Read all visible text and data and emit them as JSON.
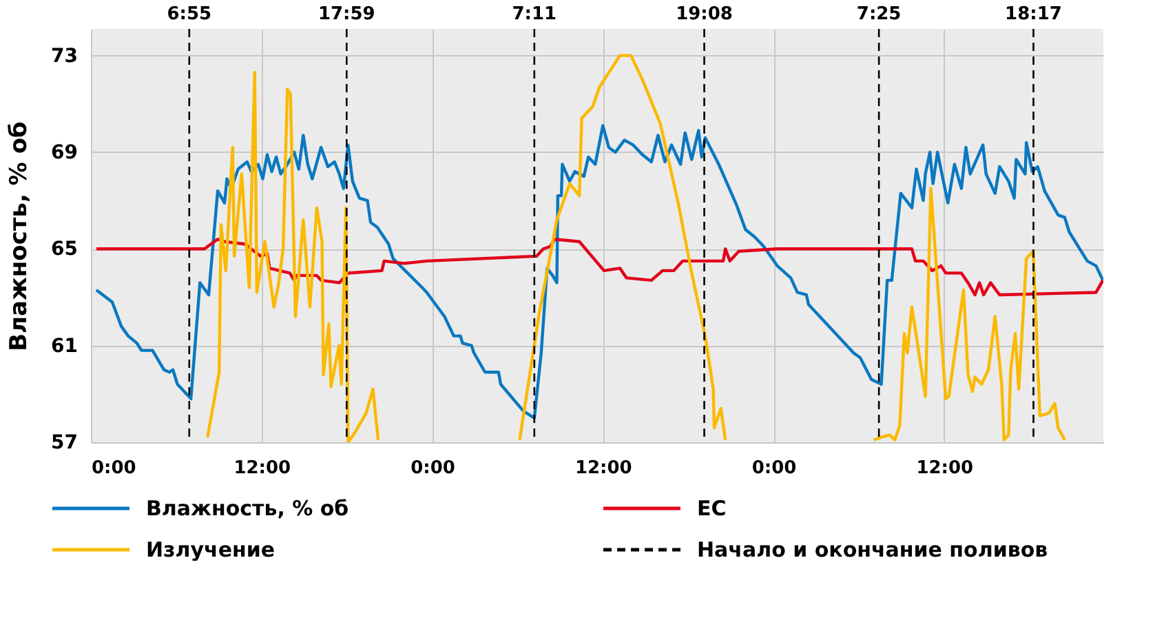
{
  "chart_data": {
    "type": "line",
    "ylabel": "Влажность, % об",
    "xlim": [
      "2000-01-01T00:00",
      "2000-01-03T23:12"
    ],
    "ylim": [
      57,
      74.1
    ],
    "xticks": [
      {
        "value": "2000-01-01T00:00",
        "label": "0:00"
      },
      {
        "value": "2000-01-01T12:00",
        "label": "12:00"
      },
      {
        "value": "2000-01-02T00:00",
        "label": "0:00"
      },
      {
        "value": "2000-01-02T12:00",
        "label": "12:00"
      },
      {
        "value": "2000-01-03T00:00",
        "label": "0:00"
      },
      {
        "value": "2000-01-03T12:00",
        "label": "12:00"
      }
    ],
    "yticks": [
      57,
      61,
      65,
      69,
      73
    ],
    "annotations": [
      "Начало и окончание поливов"
    ],
    "grid": true,
    "legend": "bottom",
    "line_style": "solid",
    "marker": "none",
    "series": [
      {
        "name": "Влажность, % об",
        "color": "#0a78c0",
        "x": [
          "2000-01-01T00:23",
          "2000-01-01T01:30",
          "2000-01-01T02:08",
          "2000-01-01T02:37",
          "2000-01-01T03:14",
          "2000-01-01T03:33",
          "2000-01-01T04:20",
          "2000-01-01T05:08",
          "2000-01-01T05:32",
          "2000-01-01T05:46",
          "2000-01-01T06:05",
          "2000-01-01T07:02",
          "2000-01-01T07:40",
          "2000-01-01T08:17",
          "2000-01-01T08:55",
          "2000-01-01T09:24",
          "2000-01-01T09:34",
          "2000-01-01T09:52",
          "2000-01-01T10:21",
          "2000-01-01T10:59",
          "2000-01-01T11:17",
          "2000-01-01T11:46",
          "2000-01-01T12:05",
          "2000-01-01T12:24",
          "2000-01-01T12:43",
          "2000-01-01T13:02",
          "2000-01-01T13:21",
          "2000-01-01T13:49",
          "2000-01-01T14:18",
          "2000-01-01T14:37",
          "2000-01-01T14:56",
          "2000-01-01T15:15",
          "2000-01-01T15:34",
          "2000-01-01T16:11",
          "2000-01-01T16:40",
          "2000-01-01T17:08",
          "2000-01-01T17:28",
          "2000-01-01T17:46",
          "2000-01-01T18:05",
          "2000-01-01T18:24",
          "2000-01-01T18:53",
          "2000-01-01T19:27",
          "2000-01-01T19:40",
          "2000-01-01T20:08",
          "2000-01-01T20:56",
          "2000-01-01T21:15",
          "2000-01-01T23:18",
          "2000-01-01T23:37",
          "2000-01-02T00:52",
          "2000-01-02T01:31",
          "2000-01-02T01:59",
          "2000-01-02T02:08",
          "2000-01-02T02:46",
          "2000-01-02T02:56",
          "2000-01-02T03:43",
          "2000-01-02T04:40",
          "2000-01-02T04:49",
          "2000-01-02T06:24",
          "2000-01-02T07:11",
          "2000-01-02T07:40",
          "2000-01-02T08:05",
          "2000-01-02T08:28",
          "2000-01-02T08:46",
          "2000-01-02T08:50",
          "2000-01-02T09:05",
          "2000-01-02T09:09",
          "2000-01-02T09:40",
          "2000-01-02T10:02",
          "2000-01-02T10:40",
          "2000-01-02T10:59",
          "2000-01-02T11:28",
          "2000-01-02T12:00",
          "2000-01-02T12:25",
          "2000-01-02T12:53",
          "2000-01-02T13:31",
          "2000-01-02T14:08",
          "2000-01-02T14:47",
          "2000-01-02T15:25",
          "2000-01-02T15:53",
          "2000-01-02T16:22",
          "2000-01-02T16:50",
          "2000-01-02T17:28",
          "2000-01-02T17:47",
          "2000-01-02T18:15",
          "2000-01-02T18:44",
          "2000-01-02T18:57",
          "2000-01-02T19:12",
          "2000-01-02T20:09",
          "2000-01-02T21:25",
          "2000-01-02T22:02",
          "2000-01-02T22:40",
          "2000-01-02T23:19",
          "2000-01-03T00:16",
          "2000-01-03T01:13",
          "2000-01-03T01:41",
          "2000-01-03T02:19",
          "2000-01-03T02:28",
          "2000-01-03T05:38",
          "2000-01-03T06:06",
          "2000-01-03T06:53",
          "2000-01-03T07:35",
          "2000-01-03T08:00",
          "2000-01-03T08:19",
          "2000-01-03T08:57",
          "2000-01-03T09:44",
          "2000-01-03T10:03",
          "2000-01-03T10:32",
          "2000-01-03T10:41",
          "2000-01-03T11:00",
          "2000-01-03T11:13",
          "2000-01-03T11:32",
          "2000-01-03T12:16",
          "2000-01-03T12:44",
          "2000-01-03T13:13",
          "2000-01-03T13:32",
          "2000-01-03T13:50",
          "2000-01-03T14:44",
          "2000-01-03T14:57",
          "2000-01-03T15:35",
          "2000-01-03T15:54",
          "2000-01-03T16:32",
          "2000-01-03T16:56",
          "2000-01-03T17:04",
          "2000-01-03T17:42",
          "2000-01-03T17:47",
          "2000-01-03T18:12",
          "2000-01-03T18:35",
          "2000-01-03T19:04",
          "2000-01-03T20:01",
          "2000-01-03T20:29",
          "2000-01-03T20:48",
          "2000-01-03T22:04",
          "2000-01-03T22:41",
          "2000-01-03T23:10"
        ],
        "values": [
          63.3,
          62.8,
          61.8,
          61.4,
          61.1,
          60.8,
          60.8,
          60.0,
          59.9,
          60.0,
          59.4,
          58.8,
          63.6,
          63.1,
          67.4,
          66.9,
          67.9,
          67.5,
          68.3,
          68.6,
          68.2,
          68.5,
          67.9,
          68.9,
          68.2,
          68.8,
          68.1,
          68.5,
          69.0,
          68.3,
          69.7,
          68.5,
          67.9,
          69.2,
          68.4,
          68.6,
          68.1,
          67.5,
          69.3,
          67.8,
          67.1,
          67.0,
          66.1,
          65.9,
          65.2,
          64.6,
          63.4,
          63.2,
          62.2,
          61.4,
          61.4,
          61.1,
          61.0,
          60.7,
          59.9,
          59.9,
          59.4,
          58.3,
          58.0,
          60.7,
          64.2,
          63.9,
          63.6,
          67.2,
          67.2,
          68.5,
          67.8,
          68.2,
          68.0,
          68.8,
          68.5,
          70.1,
          69.2,
          69.0,
          69.5,
          69.3,
          68.9,
          68.6,
          69.7,
          68.6,
          69.3,
          68.5,
          69.8,
          68.7,
          69.9,
          68.8,
          69.6,
          68.5,
          66.8,
          65.8,
          65.5,
          65.1,
          64.3,
          63.8,
          63.2,
          63.1,
          62.7,
          60.7,
          60.5,
          59.6,
          59.4,
          63.7,
          63.7,
          67.3,
          66.7,
          68.3,
          67.0,
          68.1,
          69.0,
          67.7,
          69.0,
          66.9,
          68.5,
          67.5,
          69.2,
          68.1,
          69.3,
          68.1,
          67.3,
          68.4,
          67.8,
          67.1,
          68.7,
          68.1,
          69.4,
          68.2,
          68.4,
          67.4,
          66.4,
          66.3,
          65.7,
          64.5,
          64.3,
          63.7
        ]
      },
      {
        "name": "EC",
        "color": "#e2001a",
        "x": [
          "2000-01-01T00:23",
          "2000-01-01T07:59",
          "2000-01-01T08:55",
          "2000-01-01T09:24",
          "2000-01-01T10:49",
          "2000-01-01T11:56",
          "2000-01-01T12:24",
          "2000-01-01T12:34",
          "2000-01-01T13:59",
          "2000-01-01T14:18",
          "2000-01-01T14:27",
          "2000-01-01T15:05",
          "2000-01-01T15:53",
          "2000-01-01T16:11",
          "2000-01-01T17:28",
          "2000-01-01T18:05",
          "2000-01-01T20:28",
          "2000-01-01T20:37",
          "2000-01-01T22:02",
          "2000-01-01T23:37",
          "2000-01-02T07:21",
          "2000-01-02T07:49",
          "2000-01-02T08:18",
          "2000-01-02T08:37",
          "2000-01-02T10:21",
          "2000-01-02T12:05",
          "2000-01-02T13:12",
          "2000-01-02T13:40",
          "2000-01-02T15:25",
          "2000-01-02T16:12",
          "2000-01-02T16:59",
          "2000-01-02T17:37",
          "2000-01-02T20:28",
          "2000-01-02T20:37",
          "2000-01-02T20:56",
          "2000-01-02T21:34",
          "2000-01-03T00:15",
          "2000-01-03T09:44",
          "2000-01-03T09:59",
          "2000-01-03T10:32",
          "2000-01-03T11:10",
          "2000-01-03T11:47",
          "2000-01-03T12:07",
          "2000-01-03T13:13",
          "2000-01-03T13:41",
          "2000-01-03T14:10",
          "2000-01-03T14:29",
          "2000-01-03T14:47",
          "2000-01-03T15:16",
          "2000-01-03T15:54",
          "2000-01-03T22:41",
          "2000-01-03T23:10"
        ],
        "values": [
          65.0,
          65.0,
          65.4,
          65.3,
          65.2,
          64.7,
          64.8,
          64.2,
          64.0,
          63.7,
          63.9,
          63.9,
          63.9,
          63.7,
          63.6,
          64.0,
          64.1,
          64.5,
          64.4,
          64.5,
          64.7,
          65.0,
          65.1,
          65.4,
          65.3,
          64.1,
          64.2,
          63.8,
          63.7,
          64.1,
          64.1,
          64.5,
          64.5,
          65.0,
          64.5,
          64.9,
          65.0,
          65.0,
          64.5,
          64.5,
          64.1,
          64.3,
          64.0,
          64.0,
          63.6,
          63.1,
          63.6,
          63.1,
          63.6,
          63.1,
          63.2,
          63.7
        ]
      },
      {
        "name": "Излучение",
        "color": "#fbb900",
        "x": [
          "2000-01-01T08:12",
          "2000-01-01T09:01",
          "2000-01-01T09:09",
          "2000-01-01T09:29",
          "2000-01-01T09:58",
          "2000-01-01T10:05",
          "2000-01-01T10:36",
          "2000-01-01T11:08",
          "2000-01-01T11:31",
          "2000-01-01T11:40",
          "2000-01-01T12:14",
          "2000-01-01T12:52",
          "2000-01-01T13:11",
          "2000-01-01T13:31",
          "2000-01-01T13:49",
          "2000-01-01T14:02",
          "2000-01-01T14:23",
          "2000-01-01T14:56",
          "2000-01-01T15:24",
          "2000-01-01T15:53",
          "2000-01-01T16:15",
          "2000-01-01T16:21",
          "2000-01-01T16:44",
          "2000-01-01T16:53",
          "2000-01-01T17:27",
          "2000-01-01T17:37",
          "2000-01-01T17:56",
          "2000-01-01T18:05",
          "2000-01-01T18:34",
          "2000-01-01T19:21",
          "2000-01-01T19:50",
          "2000-01-01T20:12",
          "2000-01-02T01:00",
          "2000-01-02T06:09",
          "2000-01-02T07:31",
          "2000-01-02T08:46",
          "2000-01-02T09:40",
          "2000-01-02T10:21",
          "2000-01-02T10:31",
          "2000-01-02T11:18",
          "2000-01-02T11:46",
          "2000-01-02T13:12",
          "2000-01-02T13:59",
          "2000-01-02T14:47",
          "2000-01-02T16:02",
          "2000-01-02T17:18",
          "2000-01-02T18:15",
          "2000-01-02T19:12",
          "2000-01-02T19:46",
          "2000-01-02T19:50",
          "2000-01-02T20:18",
          "2000-01-02T20:37",
          "2000-01-03T02:00",
          "2000-01-03T07:03",
          "2000-01-03T07:32",
          "2000-01-03T08:10",
          "2000-01-03T08:32",
          "2000-01-03T08:53",
          "2000-01-03T09:12",
          "2000-01-03T09:25",
          "2000-01-03T09:44",
          "2000-01-03T10:41",
          "2000-01-03T11:04",
          "2000-01-03T12:07",
          "2000-01-03T12:20",
          "2000-01-03T13:22",
          "2000-01-03T13:41",
          "2000-01-03T14:00",
          "2000-01-03T14:10",
          "2000-01-03T14:38",
          "2000-01-03T15:07",
          "2000-01-03T15:35",
          "2000-01-03T16:03",
          "2000-01-03T16:13",
          "2000-01-03T16:32",
          "2000-01-03T16:41",
          "2000-01-03T17:00",
          "2000-01-03T17:15",
          "2000-01-03T17:47",
          "2000-01-03T18:16",
          "2000-01-03T18:44",
          "2000-01-03T19:22",
          "2000-01-03T19:47",
          "2000-01-03T20:01",
          "2000-01-03T20:29"
        ],
        "values": [
          57.2,
          59.9,
          66.0,
          64.1,
          69.2,
          64.7,
          68.1,
          63.4,
          72.3,
          63.2,
          65.3,
          62.6,
          63.5,
          65.0,
          71.6,
          71.4,
          62.2,
          66.2,
          62.6,
          66.7,
          65.3,
          59.8,
          61.9,
          59.3,
          61.0,
          59.4,
          66.7,
          57.0,
          57.4,
          58.2,
          59.2,
          57.1,
          null,
          57.1,
          62.3,
          66.2,
          67.7,
          67.2,
          70.4,
          70.9,
          71.7,
          73.0,
          73.0,
          72.0,
          70.2,
          66.9,
          64.0,
          61.4,
          59.2,
          57.6,
          58.4,
          57.1,
          null,
          57.1,
          57.2,
          57.3,
          57.1,
          57.7,
          61.5,
          60.7,
          62.6,
          58.9,
          67.5,
          58.8,
          58.9,
          63.3,
          59.8,
          59.1,
          59.7,
          59.4,
          60.0,
          62.2,
          59.4,
          57.1,
          57.3,
          60.0,
          61.5,
          59.2,
          64.6,
          64.9,
          58.1,
          58.2,
          58.6,
          57.6,
          57.1
        ]
      }
    ],
    "ref_lines": [
      {
        "axis": "x",
        "value": "2000-01-01T06:55",
        "label": "6:55",
        "color": "#000000",
        "line_style": "dashed"
      },
      {
        "axis": "x",
        "value": "2000-01-01T17:59",
        "label": "17:59",
        "color": "#000000",
        "line_style": "dashed"
      },
      {
        "axis": "x",
        "value": "2000-01-02T07:11",
        "label": "7:11",
        "color": "#000000",
        "line_style": "dashed"
      },
      {
        "axis": "x",
        "value": "2000-01-02T19:08",
        "label": "19:08",
        "color": "#000000",
        "line_style": "dashed"
      },
      {
        "axis": "x",
        "value": "2000-01-03T07:25",
        "label": "7:25",
        "color": "#000000",
        "line_style": "dashed"
      },
      {
        "axis": "x",
        "value": "2000-01-03T18:17",
        "label": "18:17",
        "color": "#000000",
        "line_style": "dashed"
      }
    ]
  }
}
